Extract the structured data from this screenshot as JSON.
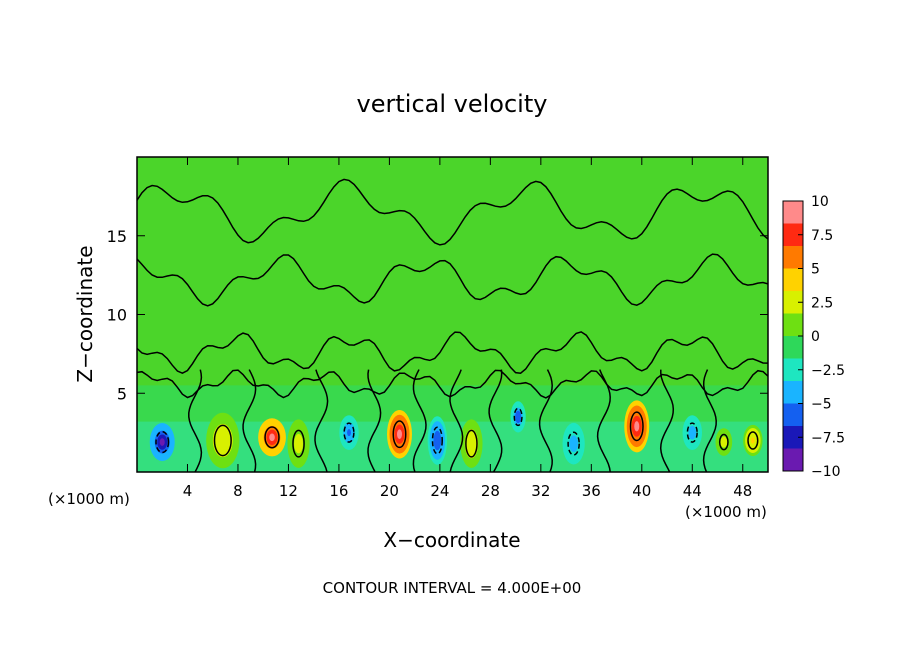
{
  "chart_data": {
    "type": "heatmap",
    "title": "vertical velocity",
    "xlabel": "X−coordinate",
    "ylabel": "Z−coordinate",
    "x_unit_left": "(×1000 m)",
    "x_unit_right": "(×1000 m)",
    "footer": "CONTOUR INTERVAL = 4.000E+00",
    "xlim": [
      0,
      50
    ],
    "ylim": [
      0,
      20
    ],
    "x_ticks": [
      4,
      8,
      12,
      16,
      20,
      24,
      28,
      32,
      36,
      40,
      44,
      48
    ],
    "x_tick_labels": [
      "4",
      "8",
      "12",
      "16",
      "20",
      "24",
      "28",
      "32",
      "36",
      "40",
      "44",
      "48"
    ],
    "y_ticks": [
      5,
      10,
      15
    ],
    "y_tick_labels": [
      "5",
      "10",
      "15"
    ],
    "colorbar": {
      "range": [
        -10,
        10
      ],
      "tick_values": [
        10,
        7.5,
        5,
        2.5,
        0,
        -2.5,
        -5,
        -7.5,
        -10
      ],
      "tick_labels": [
        "10",
        "7.5",
        "5",
        "2.5",
        "0",
        "−2.5",
        "−5",
        "−7.5",
        "−10"
      ],
      "colors": [
        "#ff8a8a",
        "#ff2a12",
        "#ff7a00",
        "#ffd200",
        "#d8f000",
        "#6ee012",
        "#2ed85a",
        "#1ee6c0",
        "#1ab4ff",
        "#1460f0",
        "#1a18b8",
        "#6a1ab0"
      ]
    },
    "features": [
      {
        "x": 2.0,
        "z": 1.9,
        "value": -8.5,
        "sx": 0.9,
        "sz": 1.1
      },
      {
        "x": 10.7,
        "z": 2.2,
        "value": 9.0,
        "sx": 1.0,
        "sz": 1.1
      },
      {
        "x": 6.8,
        "z": 2.0,
        "value": 2.6,
        "sx": 1.2,
        "sz": 1.6
      },
      {
        "x": 12.8,
        "z": 1.8,
        "value": 2.2,
        "sx": 0.8,
        "sz": 1.4
      },
      {
        "x": 16.8,
        "z": 2.5,
        "value": -5.0,
        "sx": 0.7,
        "sz": 1.0
      },
      {
        "x": 20.8,
        "z": 2.4,
        "value": 9.5,
        "sx": 0.9,
        "sz": 1.4
      },
      {
        "x": 23.8,
        "z": 2.0,
        "value": -6.5,
        "sx": 0.7,
        "sz": 1.4
      },
      {
        "x": 26.5,
        "z": 1.8,
        "value": 2.6,
        "sx": 0.8,
        "sz": 1.4
      },
      {
        "x": 30.2,
        "z": 3.5,
        "value": -6.0,
        "sx": 0.55,
        "sz": 0.9
      },
      {
        "x": 34.6,
        "z": 1.8,
        "value": -4.5,
        "sx": 0.8,
        "sz": 1.2
      },
      {
        "x": 39.6,
        "z": 2.9,
        "value": 9.5,
        "sx": 0.9,
        "sz": 1.5
      },
      {
        "x": 44.0,
        "z": 2.5,
        "value": -4.5,
        "sx": 0.7,
        "sz": 1.0
      },
      {
        "x": 48.8,
        "z": 2.0,
        "value": 3.6,
        "sx": 0.7,
        "sz": 0.9
      },
      {
        "x": 46.5,
        "z": 1.9,
        "value": 2.2,
        "sx": 0.6,
        "sz": 0.8
      }
    ]
  }
}
